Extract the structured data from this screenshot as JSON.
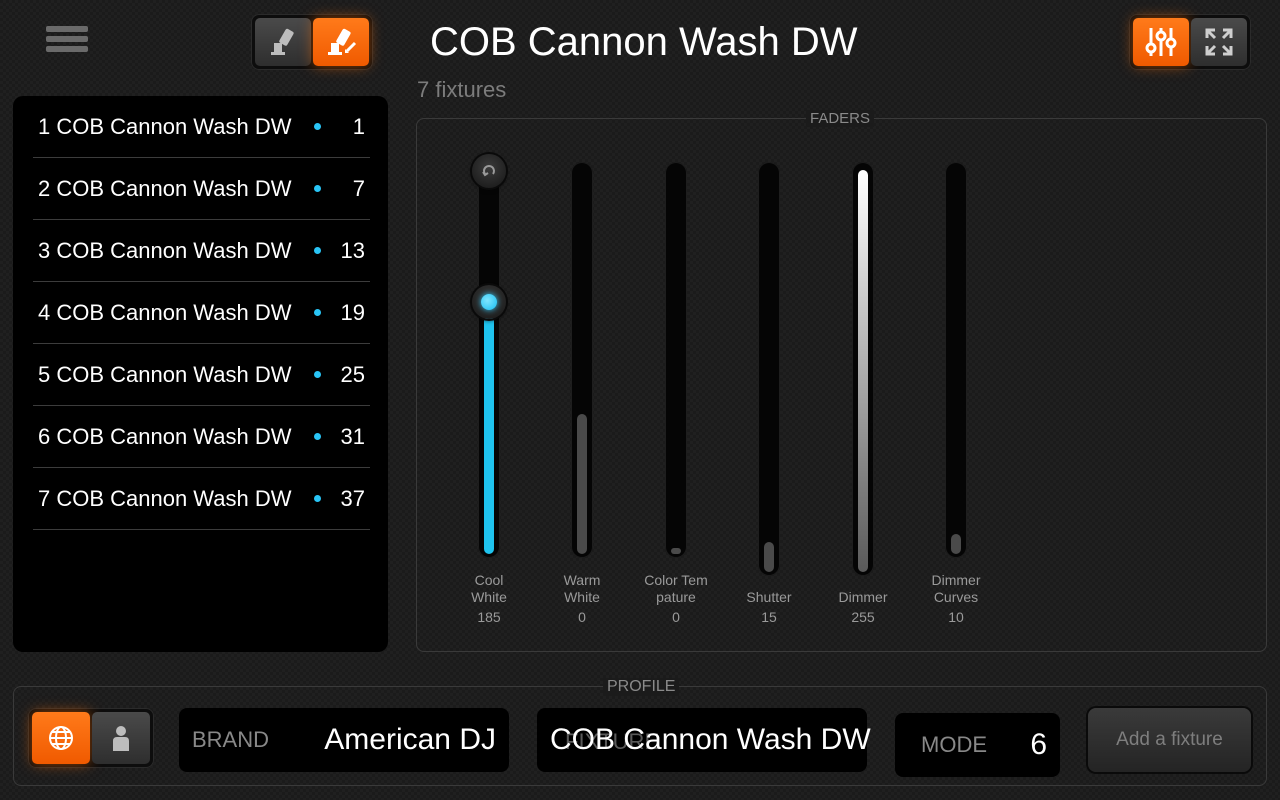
{
  "header": {
    "title": "COB Cannon Wash DW",
    "fixture_count": "7 fixtures",
    "accent_color": "#ff6a00"
  },
  "fixtures": [
    {
      "label": "1 COB Cannon Wash DW",
      "address": "1"
    },
    {
      "label": "2 COB Cannon Wash DW",
      "address": "7"
    },
    {
      "label": "3 COB Cannon Wash DW",
      "address": "13"
    },
    {
      "label": "4 COB Cannon Wash DW",
      "address": "19"
    },
    {
      "label": "5 COB Cannon Wash DW",
      "address": "25"
    },
    {
      "label": "6 COB Cannon Wash DW",
      "address": "31"
    },
    {
      "label": "7 COB Cannon Wash DW",
      "address": "37"
    }
  ],
  "faders": {
    "title": "FADERS",
    "channels": [
      {
        "label_line1": "Cool",
        "label_line2": "White",
        "value": "185"
      },
      {
        "label_line1": "Warm",
        "label_line2": "White",
        "value": "0"
      },
      {
        "label_line1": "Color Tem",
        "label_line2": "pature",
        "value": "0"
      },
      {
        "label_line1": "",
        "label_line2": "Shutter",
        "value": "15"
      },
      {
        "label_line1": "",
        "label_line2": "Dimmer",
        "value": "255"
      },
      {
        "label_line1": "Dimmer",
        "label_line2": "Curves",
        "value": "10"
      }
    ]
  },
  "profile": {
    "title": "PROFILE",
    "brand_label": "BRAND",
    "brand_value": "American DJ",
    "fixture_label": "FIXTURE",
    "fixture_value": "COB Cannon Wash DW",
    "mode_label": "MODE",
    "mode_value": "6",
    "add_button": "Add a fixture"
  }
}
